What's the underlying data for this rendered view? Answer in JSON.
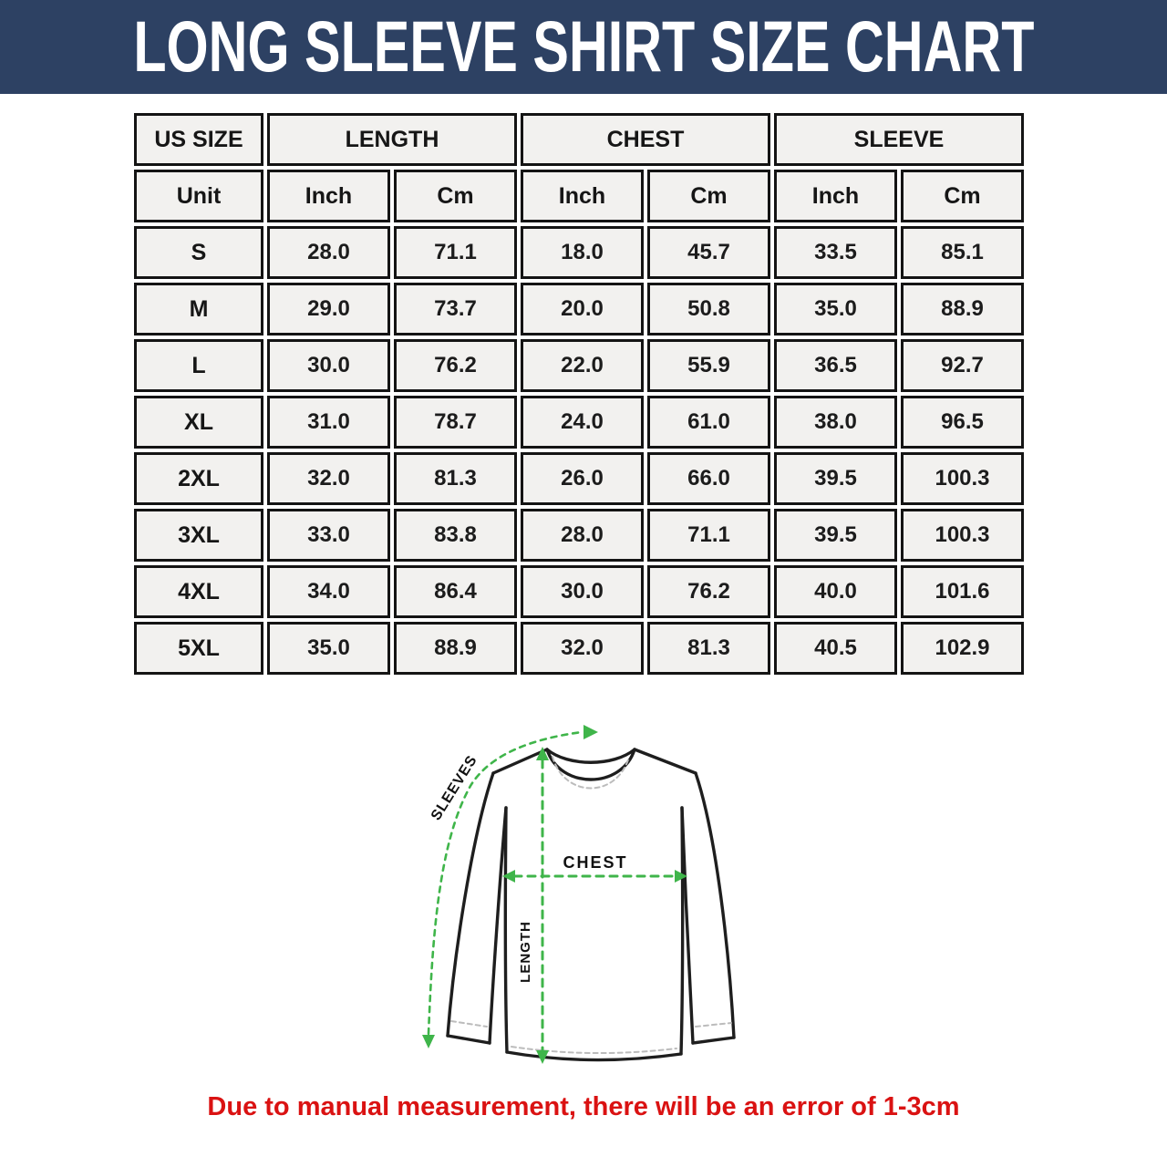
{
  "banner": {
    "title": "LONG SLEEVE SHIRT SIZE CHART"
  },
  "colors": {
    "banner_bg": "#2d4163",
    "cell_bg": "#f2f1ef",
    "border_color": "#141414",
    "arrow_green": "#3fb54a",
    "note_red": "#da1212"
  },
  "table": {
    "column_groups": [
      "US SIZE",
      "LENGTH",
      "CHEST",
      "SLEEVE"
    ],
    "unit_row": [
      "Unit",
      "Inch",
      "Cm",
      "Inch",
      "Cm",
      "Inch",
      "Cm"
    ],
    "rows": [
      {
        "size": "S",
        "values": [
          "28.0",
          "71.1",
          "18.0",
          "45.7",
          "33.5",
          "85.1"
        ]
      },
      {
        "size": "M",
        "values": [
          "29.0",
          "73.7",
          "20.0",
          "50.8",
          "35.0",
          "88.9"
        ]
      },
      {
        "size": "L",
        "values": [
          "30.0",
          "76.2",
          "22.0",
          "55.9",
          "36.5",
          "92.7"
        ]
      },
      {
        "size": "XL",
        "values": [
          "31.0",
          "78.7",
          "24.0",
          "61.0",
          "38.0",
          "96.5"
        ]
      },
      {
        "size": "2XL",
        "values": [
          "32.0",
          "81.3",
          "26.0",
          "66.0",
          "39.5",
          "100.3"
        ]
      },
      {
        "size": "3XL",
        "values": [
          "33.0",
          "83.8",
          "28.0",
          "71.1",
          "39.5",
          "100.3"
        ]
      },
      {
        "size": "4XL",
        "values": [
          "34.0",
          "86.4",
          "30.0",
          "76.2",
          "40.0",
          "101.6"
        ]
      },
      {
        "size": "5XL",
        "values": [
          "35.0",
          "88.9",
          "32.0",
          "81.3",
          "40.5",
          "102.9"
        ]
      }
    ]
  },
  "diagram": {
    "labels": {
      "sleeves": "SLEEVES",
      "chest": "CHEST",
      "length": "LENGTH"
    }
  },
  "note": {
    "text": "Due to manual measurement, there will be an error of 1-3cm"
  }
}
